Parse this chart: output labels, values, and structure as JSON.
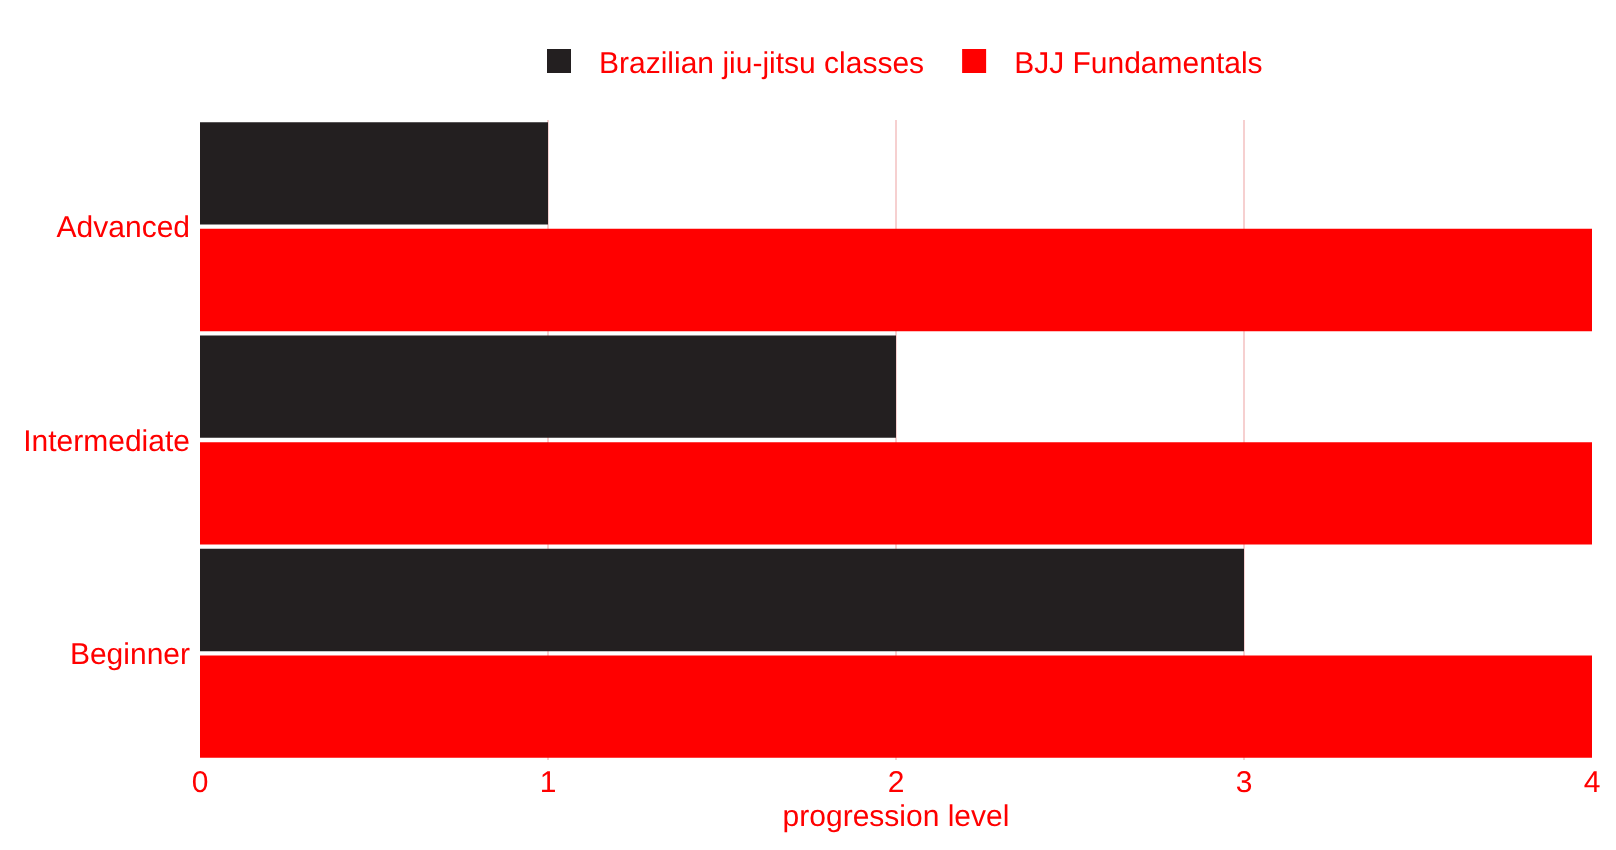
{
  "chart_data": {
    "type": "bar",
    "orientation": "horizontal",
    "categories": [
      "Advanced",
      "Intermediate",
      "Beginner"
    ],
    "series": [
      {
        "name": "Brazilian jiu-jitsu classes",
        "color": "#231f20",
        "values": [
          1,
          2,
          3
        ]
      },
      {
        "name": "BJJ Fundamentals",
        "color": "#ff0000",
        "values": [
          4,
          4,
          4
        ]
      }
    ],
    "xlabel": "progression level",
    "xlim": [
      0,
      4
    ],
    "xticks": [
      0,
      1,
      2,
      3,
      4
    ],
    "grid": "x",
    "legend": "top"
  }
}
